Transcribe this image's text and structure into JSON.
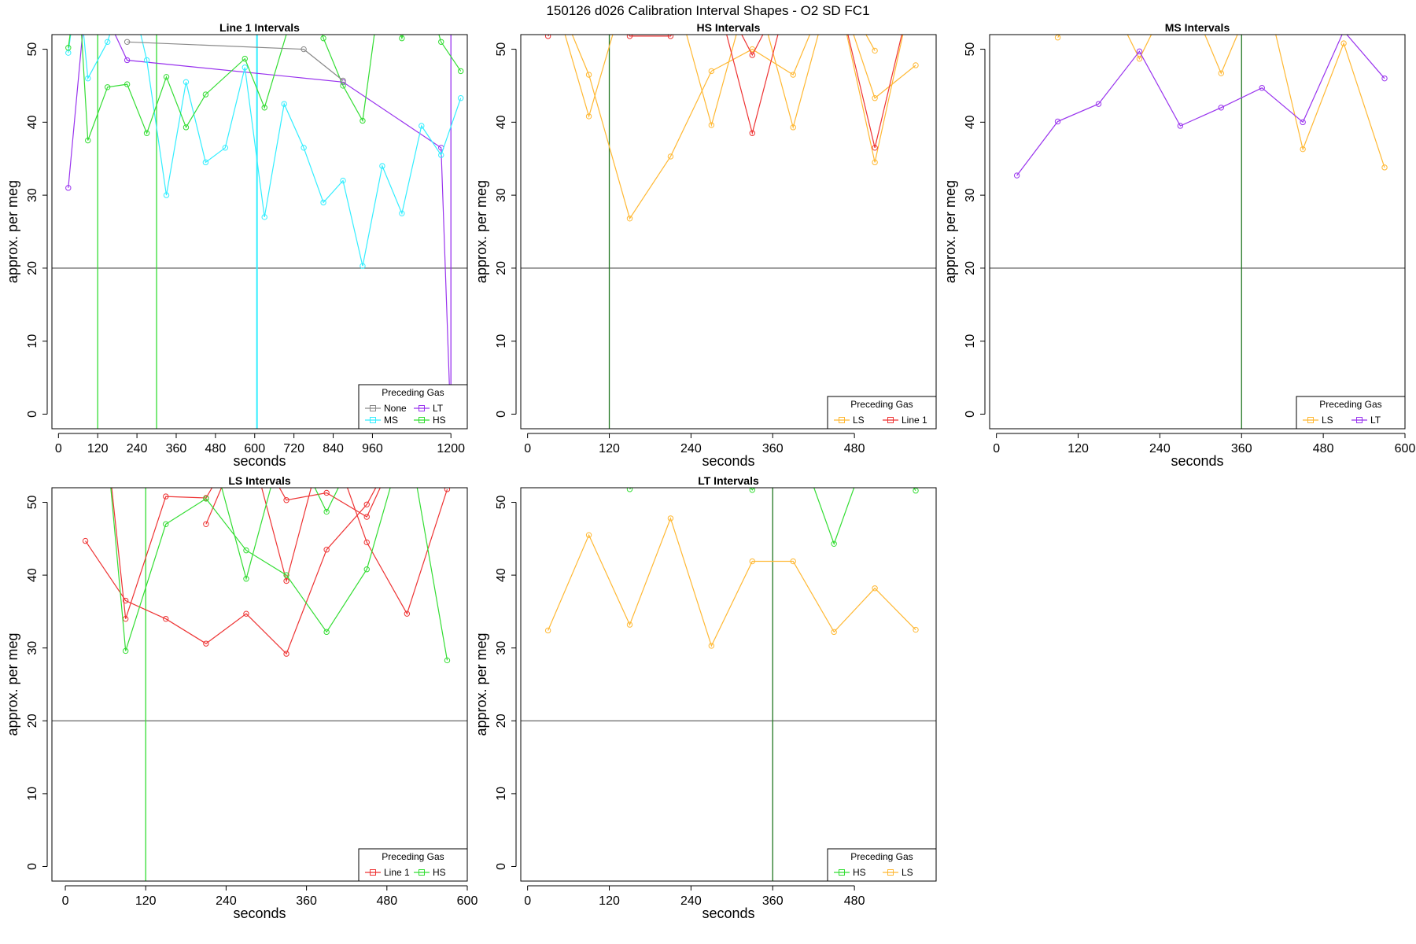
{
  "figure_title": "150126   d026   Calibration Interval Shapes - O2 SD FC1",
  "colors": {
    "None": "#888888",
    "LT": "#9933ee",
    "MS": "#33eeff",
    "HS": "#33dd33",
    "LS": "#ffb833",
    "Line 1": "#ee3333",
    "axis": "#000000",
    "refline": "#555555",
    "vline": "#227722"
  },
  "chart_data": [
    {
      "type": "line",
      "title": "Line 1 Intervals",
      "xlabel": "seconds",
      "ylabel": "approx. per meg",
      "xlim": [
        -20,
        1250
      ],
      "ylim": [
        -2,
        52
      ],
      "xticks": [
        0,
        120,
        240,
        360,
        480,
        600,
        720,
        840,
        960,
        1200
      ],
      "yticks": [
        0,
        10,
        20,
        30,
        40,
        50
      ],
      "hline": 20,
      "vlines": [
        {
          "x": 120,
          "color": "HS"
        },
        {
          "x": 300,
          "color": "HS"
        },
        {
          "x": 607,
          "color": "MS"
        },
        {
          "x": 1200,
          "color": "LT"
        }
      ],
      "legend": {
        "title": "Preceding Gas",
        "position": "bottom-right",
        "columns": 2,
        "items": [
          "None",
          "LT",
          "MS",
          "HS"
        ]
      },
      "series": [
        {
          "name": "LT",
          "x": [
            30,
            90,
            210,
            870,
            1170,
            1200
          ],
          "y": [
            31,
            60,
            48.5,
            45.5,
            36.5,
            -2
          ]
        },
        {
          "name": "MS",
          "x": [
            30,
            60,
            90,
            150,
            210,
            270,
            330,
            390,
            450,
            510,
            570,
            630,
            690,
            750,
            810,
            870,
            930,
            990,
            1050,
            1110,
            1170,
            1230
          ],
          "y": [
            49.5,
            60,
            46,
            51,
            60,
            48.5,
            30,
            45.5,
            34.5,
            36.5,
            47.5,
            27,
            42.5,
            36.5,
            29,
            32,
            20.3,
            34,
            27.5,
            39.5,
            35.5,
            43.3
          ]
        },
        {
          "name": "HS",
          "x": [
            30,
            60,
            90,
            150,
            210,
            270,
            330,
            390,
            450,
            570,
            630,
            750,
            810,
            870,
            930,
            990,
            1050,
            1110,
            1170,
            1230
          ],
          "y": [
            50.2,
            60,
            37.5,
            44.8,
            45.2,
            38.5,
            46.2,
            39.3,
            43.8,
            48.7,
            42,
            60,
            51.5,
            45,
            40.2,
            60,
            51.5,
            60,
            51,
            47
          ]
        },
        {
          "name": "None",
          "x": [
            210,
            750,
            870
          ],
          "y": [
            51,
            50,
            45.7
          ]
        }
      ]
    },
    {
      "type": "line",
      "title": "HS Intervals",
      "xlabel": "seconds",
      "ylabel": "approx. per meg",
      "xlim": [
        -10,
        600
      ],
      "ylim": [
        -2,
        52
      ],
      "xticks": [
        0,
        120,
        240,
        360,
        480
      ],
      "yticks": [
        0,
        10,
        20,
        30,
        40,
        50
      ],
      "hline": 20,
      "vlines": [
        {
          "x": 120,
          "color": "vline"
        }
      ],
      "legend": {
        "title": "Preceding Gas",
        "position": "bottom-right",
        "columns": 2,
        "items": [
          "LS",
          "Line 1"
        ]
      },
      "series": [
        {
          "name": "LS",
          "x": [
            30,
            90,
            150,
            210,
            270,
            330,
            390,
            450,
            510,
            570
          ],
          "y": [
            60,
            46.5,
            26.8,
            35.3,
            47,
            50,
            46.5,
            60,
            43.3,
            47.8
          ]
        },
        {
          "name": "LS",
          "x": [
            30,
            90,
            150,
            210,
            270,
            330,
            390,
            450,
            510,
            570
          ],
          "y": [
            60,
            40.8,
            60,
            60,
            39.6,
            60,
            39.3,
            60,
            34.5,
            60
          ]
        },
        {
          "name": "LS",
          "x": [
            450,
            510
          ],
          "y": [
            60,
            49.8
          ]
        },
        {
          "name": "Line 1",
          "x": [
            30,
            90,
            150,
            210,
            270,
            330,
            390,
            450,
            510,
            570
          ],
          "y": [
            51.8,
            60,
            51.8,
            51.8,
            60,
            38.5,
            60,
            60,
            36.5,
            60
          ]
        },
        {
          "name": "Line 1",
          "x": [
            270,
            330,
            390
          ],
          "y": [
            60,
            49.2,
            60
          ]
        }
      ]
    },
    {
      "type": "line",
      "title": "MS Intervals",
      "xlabel": "seconds",
      "ylabel": "approx. per meg",
      "xlim": [
        -10,
        600
      ],
      "ylim": [
        -2,
        52
      ],
      "xticks": [
        0,
        120,
        240,
        360,
        480,
        600
      ],
      "yticks": [
        0,
        10,
        20,
        30,
        40,
        50
      ],
      "hline": 20,
      "vlines": [
        {
          "x": 360,
          "color": "vline"
        }
      ],
      "legend": {
        "title": "Preceding Gas",
        "position": "bottom-right",
        "columns": 2,
        "items": [
          "LS",
          "LT"
        ]
      },
      "series": [
        {
          "name": "LS",
          "x": [
            90,
            150,
            210,
            270,
            330,
            390,
            450,
            510,
            570
          ],
          "y": [
            51.6,
            60,
            48.7,
            60,
            46.7,
            60,
            36.3,
            50.8,
            33.8
          ]
        },
        {
          "name": "LT",
          "x": [
            30,
            90,
            150,
            210,
            270,
            330,
            390,
            450,
            510,
            570
          ],
          "y": [
            32.7,
            40.1,
            42.5,
            49.7,
            39.5,
            42,
            44.7,
            40,
            52.5,
            46
          ]
        }
      ]
    },
    {
      "type": "line",
      "title": "LS Intervals",
      "xlabel": "seconds",
      "ylabel": "approx. per meg",
      "xlim": [
        -20,
        600
      ],
      "ylim": [
        -2,
        52
      ],
      "xticks": [
        0,
        120,
        240,
        360,
        480,
        600
      ],
      "yticks": [
        0,
        10,
        20,
        30,
        40,
        50
      ],
      "hline": 20,
      "vlines": [
        {
          "x": 120,
          "color": "HS"
        }
      ],
      "legend": {
        "title": "Preceding Gas",
        "position": "bottom-right",
        "columns": 2,
        "items": [
          "Line 1",
          "HS"
        ]
      },
      "series": [
        {
          "name": "Line 1",
          "x": [
            30,
            90,
            150,
            210,
            270,
            330,
            390,
            450,
            510
          ],
          "y": [
            44.7,
            36.5,
            34,
            30.6,
            34.7,
            29.2,
            43.5,
            49.7,
            60
          ]
        },
        {
          "name": "Line 1",
          "x": [
            60,
            90,
            150,
            210,
            270,
            330,
            390,
            450,
            510
          ],
          "y": [
            60,
            34,
            50.8,
            50.6,
            60,
            50.3,
            51.3,
            48,
            60
          ]
        },
        {
          "name": "Line 1",
          "x": [
            210,
            270,
            330,
            390,
            450,
            510,
            570
          ],
          "y": [
            47,
            60,
            39.2,
            60,
            44.5,
            34.7,
            51.8
          ]
        },
        {
          "name": "HS",
          "x": [
            60,
            90,
            150,
            210,
            270,
            330,
            390,
            450,
            510,
            570
          ],
          "y": [
            60,
            29.6,
            47,
            50.5,
            43.4,
            40,
            32.2,
            40.8,
            60,
            28.3
          ]
        },
        {
          "name": "HS",
          "x": [
            210,
            270,
            330,
            390,
            450
          ],
          "y": [
            60,
            39.5,
            60,
            48.7,
            60
          ]
        }
      ]
    },
    {
      "type": "line",
      "title": "LT Intervals",
      "xlabel": "seconds",
      "ylabel": "approx. per meg",
      "xlim": [
        -10,
        600
      ],
      "ylim": [
        -2,
        52
      ],
      "xticks": [
        0,
        120,
        240,
        360,
        480
      ],
      "yticks": [
        0,
        10,
        20,
        30,
        40,
        50
      ],
      "hline": 20,
      "vlines": [
        {
          "x": 360,
          "color": "vline"
        }
      ],
      "legend": {
        "title": "Preceding Gas",
        "position": "bottom-right",
        "columns": 2,
        "items": [
          "HS",
          "LS"
        ]
      },
      "series": [
        {
          "name": "HS",
          "x": [
            150,
            210,
            270,
            330,
            390,
            450,
            510,
            570
          ],
          "y": [
            51.8,
            60,
            60,
            51.7,
            60,
            44.3,
            60,
            51.6
          ]
        },
        {
          "name": "LS",
          "x": [
            30,
            90,
            150,
            210,
            270,
            330,
            390,
            450,
            510,
            570
          ],
          "y": [
            32.4,
            45.5,
            33.2,
            47.8,
            30.3,
            41.9,
            41.9,
            32.2,
            38.2,
            32.5
          ]
        }
      ]
    }
  ]
}
